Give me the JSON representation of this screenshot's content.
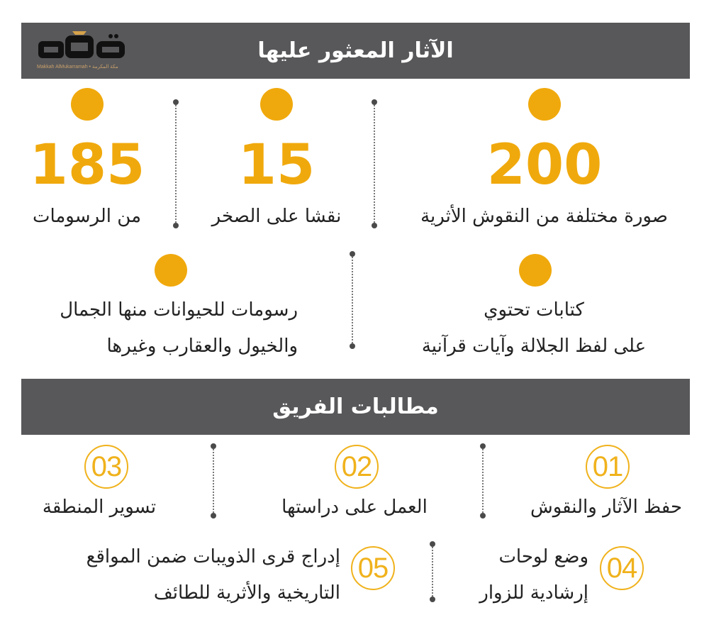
{
  "logo": {
    "name": "مكة",
    "subtitle": "Makkah AlMukarramah • مكة المكرمة"
  },
  "header1": {
    "title": "الآثار المعثور عليها"
  },
  "stats": [
    {
      "number": "200",
      "label": "صورة مختلفة  من النقوش الأثرية"
    },
    {
      "number": "15",
      "label": "نقشا على الصخر"
    },
    {
      "number": "185",
      "label": "من الرسومات"
    }
  ],
  "facts": [
    {
      "line1": "كتابات تحتوي",
      "line2": "على لفظ الجلالة وآيات قرآنية"
    },
    {
      "line1": "رسومات للحيوانات منها الجمال",
      "line2": "والخيول والعقارب وغيرها"
    }
  ],
  "header2": {
    "title": "مطالبات الفريق"
  },
  "demands": [
    {
      "num": "01",
      "line1": "حفظ الآثار والنقوش",
      "line2": ""
    },
    {
      "num": "02",
      "line1": "العمل على دراستها",
      "line2": ""
    },
    {
      "num": "03",
      "line1": "تسوير المنطقة",
      "line2": ""
    },
    {
      "num": "04",
      "line1": "وضع لوحات",
      "line2": "إرشادية للزوار"
    },
    {
      "num": "05",
      "line1": "إدراج قرى الذويبات ضمن المواقع",
      "line2": "التاريخية والأثرية للطائف"
    }
  ],
  "colors": {
    "accent": "#f0a90c",
    "band": "#58585a",
    "text": "#222222"
  }
}
